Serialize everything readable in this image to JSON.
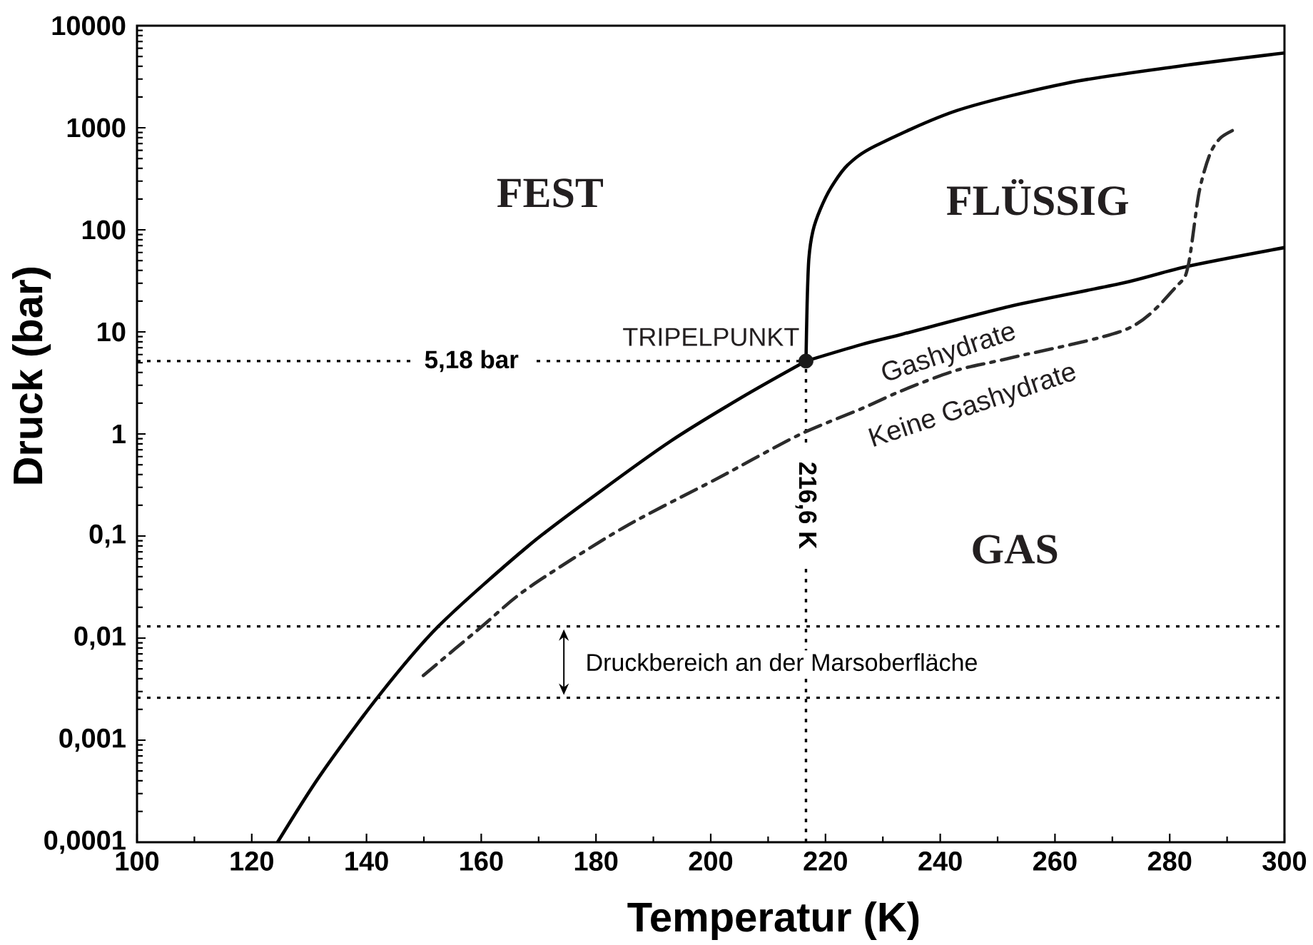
{
  "chart_data": {
    "type": "line",
    "xlabel": "Temperatur (K)",
    "ylabel": "Druck (bar)",
    "xlim": [
      100,
      300
    ],
    "ylim": [
      0.0001,
      10000
    ],
    "log": "y",
    "xticks": [
      100,
      {
        "value": 110,
        "label": null
      },
      120,
      {
        "value": 130,
        "label": null
      },
      140,
      {
        "value": 150,
        "label": null
      },
      160,
      {
        "value": 170,
        "label": null
      },
      180,
      {
        "value": 190,
        "label": null
      },
      200,
      {
        "value": 210,
        "label": null
      },
      220,
      {
        "value": 230,
        "label": null
      },
      240,
      {
        "value": 250,
        "label": null
      },
      260,
      {
        "value": 270,
        "label": null
      },
      280,
      {
        "value": 290,
        "label": null
      },
      300
    ],
    "yticks": [
      {
        "value": 0.0001,
        "label": "0,0001"
      },
      {
        "value": 0.0002,
        "label": null
      },
      {
        "value": 0.0003,
        "label": null
      },
      {
        "value": 0.0004,
        "label": null
      },
      {
        "value": 0.0005,
        "label": null
      },
      {
        "value": 0.0006,
        "label": null
      },
      {
        "value": 0.0007,
        "label": null
      },
      {
        "value": 0.0008,
        "label": null
      },
      {
        "value": 0.0009,
        "label": null
      },
      {
        "value": 0.001,
        "label": "0,001"
      },
      {
        "value": 0.002,
        "label": null
      },
      {
        "value": 0.003,
        "label": null
      },
      {
        "value": 0.004,
        "label": null
      },
      {
        "value": 0.005,
        "label": null
      },
      {
        "value": 0.006,
        "label": null
      },
      {
        "value": 0.007,
        "label": null
      },
      {
        "value": 0.008,
        "label": null
      },
      {
        "value": 0.009,
        "label": null
      },
      {
        "value": 0.01,
        "label": "0,01"
      },
      {
        "value": 0.02,
        "label": null
      },
      {
        "value": 0.03,
        "label": null
      },
      {
        "value": 0.04,
        "label": null
      },
      {
        "value": 0.05,
        "label": null
      },
      {
        "value": 0.06,
        "label": null
      },
      {
        "value": 0.07,
        "label": null
      },
      {
        "value": 0.08,
        "label": null
      },
      {
        "value": 0.09,
        "label": null
      },
      {
        "value": 0.1,
        "label": "0,1"
      },
      {
        "value": 0.2,
        "label": null
      },
      {
        "value": 0.3,
        "label": null
      },
      {
        "value": 0.4,
        "label": null
      },
      {
        "value": 0.5,
        "label": null
      },
      {
        "value": 0.6,
        "label": null
      },
      {
        "value": 0.7,
        "label": null
      },
      {
        "value": 0.8,
        "label": null
      },
      {
        "value": 0.9,
        "label": null
      },
      1,
      {
        "value": 2,
        "label": null
      },
      {
        "value": 3,
        "label": null
      },
      {
        "value": 4,
        "label": null
      },
      {
        "value": 5,
        "label": null
      },
      {
        "value": 6,
        "label": null
      },
      {
        "value": 7,
        "label": null
      },
      {
        "value": 8,
        "label": null
      },
      {
        "value": 9,
        "label": null
      },
      10,
      {
        "value": 20,
        "label": null
      },
      {
        "value": 30,
        "label": null
      },
      {
        "value": 40,
        "label": null
      },
      {
        "value": 50,
        "label": null
      },
      {
        "value": 60,
        "label": null
      },
      {
        "value": 70,
        "label": null
      },
      {
        "value": 80,
        "label": null
      },
      {
        "value": 90,
        "label": null
      },
      100,
      {
        "value": 200,
        "label": null
      },
      {
        "value": 300,
        "label": null
      },
      {
        "value": 400,
        "label": null
      },
      {
        "value": 500,
        "label": null
      },
      {
        "value": 600,
        "label": null
      },
      {
        "value": 700,
        "label": null
      },
      {
        "value": 800,
        "label": null
      },
      {
        "value": 900,
        "label": null
      },
      1000,
      {
        "value": 2000,
        "label": null
      },
      {
        "value": 3000,
        "label": null
      },
      {
        "value": 4000,
        "label": null
      },
      {
        "value": 5000,
        "label": null
      },
      {
        "value": 6000,
        "label": null
      },
      {
        "value": 7000,
        "label": null
      },
      {
        "value": 8000,
        "label": null
      },
      {
        "value": 9000,
        "label": null
      },
      10000
    ],
    "series": [
      {
        "color": "#000000",
        "line_style": "solid",
        "x": [
          124.5,
          131.9,
          142.1,
          152.5,
          168.2,
          180.6,
          193,
          205.5,
          216.6
        ],
        "values": [
          0.0001,
          0.00045,
          0.0027,
          0.013,
          0.08,
          0.27,
          0.85,
          2.3,
          5.18
        ]
      },
      {
        "color": "#000000",
        "line_style": "solid",
        "x": [
          216.6,
          216.8,
          217.1,
          217.8,
          219.1,
          221,
          223.8,
          228.6,
          243,
          262.1,
          281.2,
          300
        ],
        "values": [
          5.18,
          19,
          52,
          97,
          159,
          261,
          428,
          660,
          1480,
          2740,
          3980,
          5400
        ]
      },
      {
        "color": "#000000",
        "line_style": "solid",
        "x": [
          216.6,
          226.2,
          233.4,
          252.5,
          271.7,
          283.2,
          300
        ],
        "values": [
          5.18,
          7.5,
          9.5,
          18,
          30,
          44,
          67
        ]
      },
      {
        "color": "#2b2b2b",
        "line_style": "dashdot",
        "x": [
          149.9,
          160.1,
          168.2,
          184.7,
          201.3,
          215.4,
          226.2,
          233.4,
          242.8,
          252.5,
          272.6,
          281.2,
          283.2,
          285.1,
          287,
          288.9,
          291.6
        ],
        "values": [
          0.0043,
          0.013,
          0.031,
          0.12,
          0.37,
          0.98,
          1.76,
          2.67,
          4.2,
          5.6,
          10.7,
          28,
          44,
          230,
          550,
          800,
          980
        ]
      },
      {
        "type": "scatter",
        "color": "#1a1a1a",
        "marker": "circle",
        "x": [
          216.6
        ],
        "values": [
          5.18
        ]
      }
    ],
    "ref_lines": [
      {
        "axis": "y",
        "value": 5.18,
        "label": "5,18 bar",
        "line_style": "dotted"
      },
      {
        "axis": "x",
        "value": 216.6,
        "label": "216,6 K",
        "line_style": "dotted"
      },
      {
        "axis": "y",
        "value": 0.013,
        "line_style": "dotted"
      },
      {
        "axis": "y",
        "value": 0.0026,
        "line_style": "dotted"
      }
    ],
    "annotations": [
      "FEST",
      "FLÜSSIG",
      "GAS",
      {
        "text": "TRIPELPUNKT",
        "x": 216.6,
        "y": 5.18
      },
      "Gashydrate",
      "Keine Gashydrate",
      "Druckbereich an der Marsoberfläche"
    ]
  }
}
